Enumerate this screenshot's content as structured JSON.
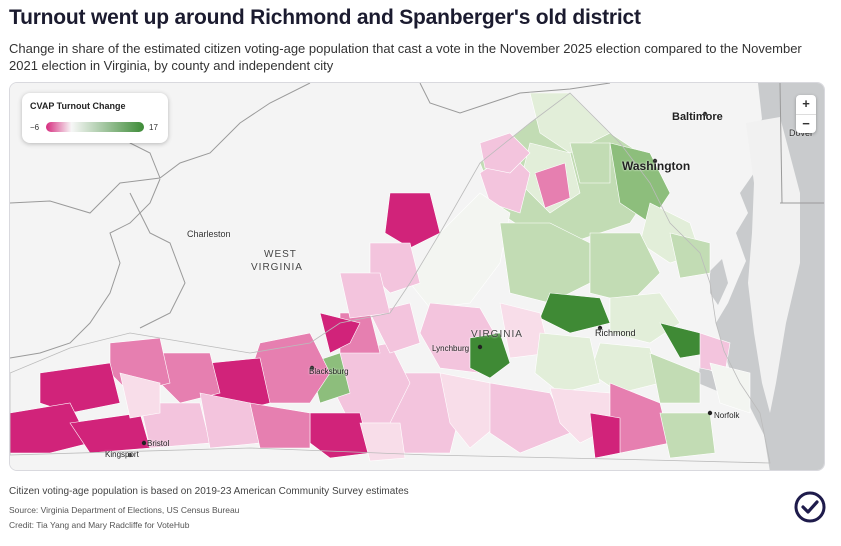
{
  "header": {
    "title": "Turnout went up around Richmond and Spanberger's old district",
    "subtitle": "Change in share of the estimated citizen voting-age population that cast a vote in the November 2025 election compared to the November 2021 election in Virginia, by county and independent city"
  },
  "legend": {
    "title": "CVAP Turnout Change",
    "min": "−6",
    "max": "17",
    "color_low": "#d62b7e",
    "color_mid": "#f7f7f7",
    "color_high": "#3d8b37"
  },
  "zoom": {
    "in": "+",
    "out": "−"
  },
  "map_labels": {
    "baltimore": "Baltimore",
    "dover": "Dover",
    "washington": "Washington",
    "charleston": "Charleston",
    "west_virginia_1": "WEST",
    "west_virginia_2": "VIRGINIA",
    "virginia": "VIRGINIA",
    "richmond": "Richmond",
    "lynchburg": "Lynchburg",
    "blacksburg": "Blacksburg",
    "norfolk": "Norfolk",
    "bristol": "Bristol",
    "kingsport": "Kingsport"
  },
  "colors": {
    "water": "#c9cbcd",
    "land": "#f4f4f4",
    "strong_pink": "#d1237a",
    "mid_pink": "#e67fb0",
    "light_pink": "#f3c4dd",
    "pale_pink": "#f8dde9",
    "neutral": "#f3f5f1",
    "pale_green": "#e2eed9",
    "light_green": "#c2dcb4",
    "mid_green": "#8dbe7c",
    "strong_green": "#3f8a35"
  },
  "footer": {
    "note": "Citizen voting-age population is based on 2019-23 American Community Survey estimates",
    "source": "Source: Virginia Department of Elections, US Census Bureau",
    "credit": "Credit: Tia Yang and Mary Radcliffe for VoteHub"
  }
}
